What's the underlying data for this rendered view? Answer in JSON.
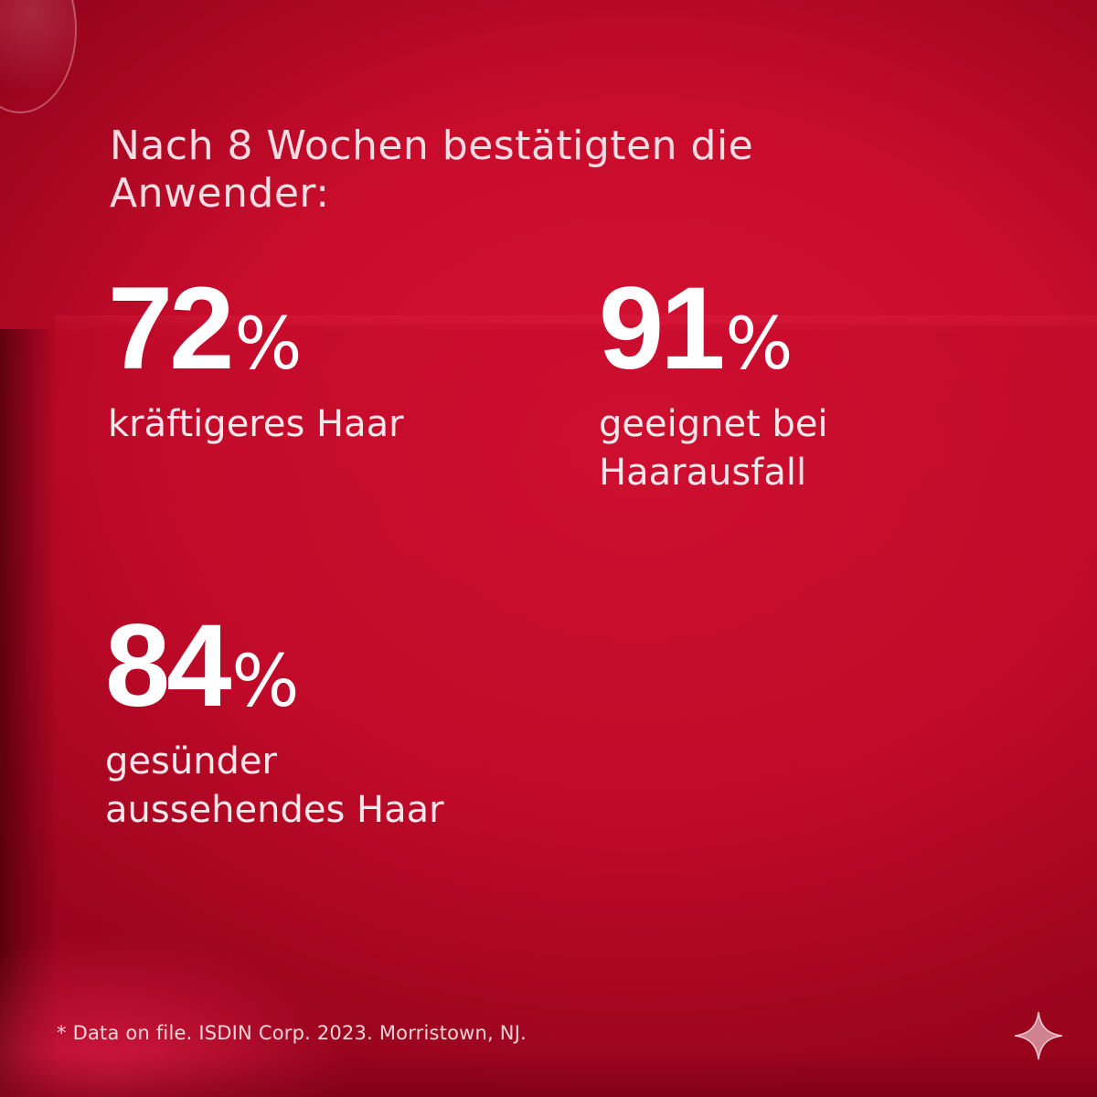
{
  "headline": "Nach 8 Wochen bestätigten die\nAnwender:",
  "stats": [
    {
      "value": "72",
      "unit": "%",
      "label": "kräftigeres Haar"
    },
    {
      "value": "91",
      "unit": "%",
      "label": "geeignet bei\nHaarausfall"
    },
    {
      "value": "84",
      "unit": "%",
      "label": "gesünder\naussehendes Haar"
    }
  ],
  "footnote": "* Data on file. ISDIN Corp. 2023. Morristown, NJ.",
  "icons": {
    "corner_mark": "sparkle-icon"
  },
  "colors": {
    "background": "#c8102e",
    "text": "#ffffff"
  }
}
